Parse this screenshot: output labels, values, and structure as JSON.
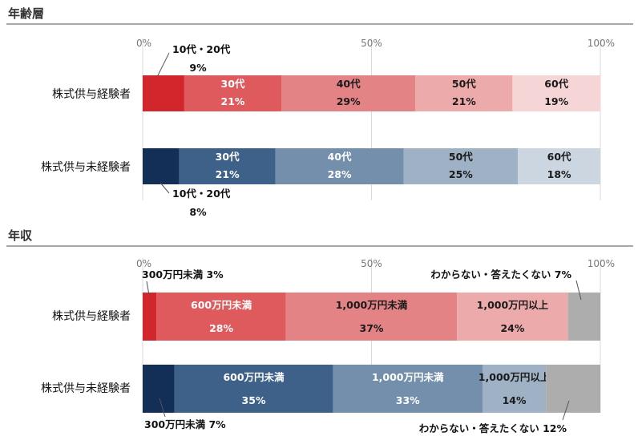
{
  "chart_data": [
    {
      "type": "bar",
      "orientation": "horizontal",
      "stacked": "percent",
      "title": "年齢層",
      "ticks": [
        "0%",
        "50%",
        "100%"
      ],
      "xlim": [
        0,
        100
      ],
      "grid": true,
      "categories": [
        "株式供与経験者",
        "株式供与未経験者"
      ],
      "series": [
        {
          "name": "10代・20代",
          "values": [
            9,
            8
          ]
        },
        {
          "name": "30代",
          "values": [
            21,
            21
          ]
        },
        {
          "name": "40代",
          "values": [
            29,
            28
          ]
        },
        {
          "name": "50代",
          "values": [
            21,
            25
          ]
        },
        {
          "name": "60代",
          "values": [
            19,
            18
          ]
        }
      ],
      "value_labels": [
        [
          "9%",
          "21%",
          "29%",
          "21%",
          "19%"
        ],
        [
          "8%",
          "21%",
          "28%",
          "25%",
          "18%"
        ]
      ],
      "colors": [
        [
          "#d1262c",
          "#de5a5d",
          "#e48385",
          "#edaaab",
          "#f6d5d6"
        ],
        [
          "#142f57",
          "#3e618a",
          "#738fac",
          "#9fb1c4",
          "#cbd6e1"
        ]
      ]
    },
    {
      "type": "bar",
      "orientation": "horizontal",
      "stacked": "percent",
      "title": "年収",
      "ticks": [
        "0%",
        "50%",
        "100%"
      ],
      "xlim": [
        0,
        100
      ],
      "grid": true,
      "categories": [
        "株式供与経験者",
        "株式供与未経験者"
      ],
      "series": [
        {
          "name": "300万円未満",
          "values": [
            3,
            7
          ]
        },
        {
          "name": "600万円未満",
          "values": [
            28,
            35
          ]
        },
        {
          "name": "1,000万円未満",
          "values": [
            37,
            33
          ]
        },
        {
          "name": "1,000万円以上",
          "values": [
            24,
            14
          ]
        },
        {
          "name": "わからない・答えたくない",
          "values": [
            7,
            12
          ]
        }
      ],
      "value_labels": [
        [
          "3%",
          "28%",
          "37%",
          "24%",
          "7%"
        ],
        [
          "7%",
          "35%",
          "33%",
          "14%",
          "12%"
        ]
      ],
      "colors": [
        [
          "#d1262c",
          "#de5a5d",
          "#e48385",
          "#edaaab",
          "#adadad"
        ],
        [
          "#142f57",
          "#3e618a",
          "#738fac",
          "#9fb1c4",
          "#adadad"
        ]
      ]
    }
  ]
}
